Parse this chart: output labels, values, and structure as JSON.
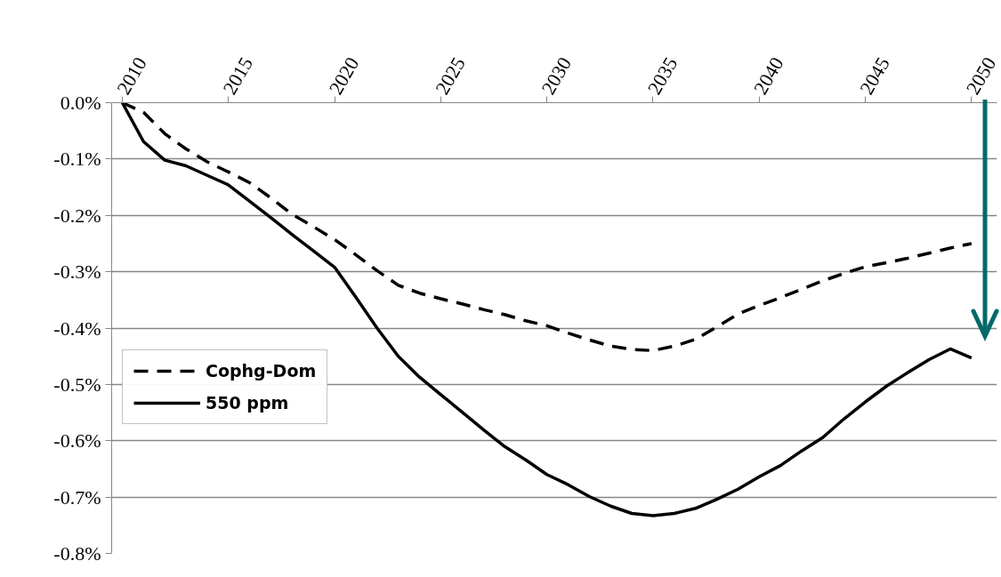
{
  "chart_data": {
    "type": "line",
    "x": [
      2010,
      2011,
      2012,
      2013,
      2014,
      2015,
      2016,
      2017,
      2018,
      2019,
      2020,
      2021,
      2022,
      2023,
      2024,
      2025,
      2026,
      2027,
      2028,
      2029,
      2030,
      2031,
      2032,
      2033,
      2034,
      2035,
      2036,
      2037,
      2038,
      2039,
      2040,
      2041,
      2042,
      2043,
      2044,
      2045,
      2046,
      2047,
      2048,
      2049,
      2050
    ],
    "series": [
      {
        "name": "Cophg-Dom",
        "color": "#000000",
        "line_style": "dashed",
        "values": [
          0,
          -0.017,
          -0.055,
          -0.082,
          -0.105,
          -0.123,
          -0.142,
          -0.169,
          -0.198,
          -0.22,
          -0.243,
          -0.27,
          -0.298,
          -0.324,
          -0.338,
          -0.348,
          -0.357,
          -0.367,
          -0.376,
          -0.387,
          -0.396,
          -0.409,
          -0.421,
          -0.432,
          -0.438,
          -0.44,
          -0.432,
          -0.42,
          -0.398,
          -0.375,
          -0.36,
          -0.346,
          -0.331,
          -0.316,
          -0.303,
          -0.291,
          -0.284,
          -0.276,
          -0.267,
          -0.258,
          -0.25
        ]
      },
      {
        "name": "550 ppm",
        "color": "#000000",
        "line_style": "solid",
        "values": [
          0,
          -0.069,
          -0.102,
          -0.112,
          -0.129,
          -0.146,
          -0.175,
          -0.204,
          -0.234,
          -0.263,
          -0.292,
          -0.345,
          -0.4,
          -0.45,
          -0.487,
          -0.518,
          -0.549,
          -0.58,
          -0.61,
          -0.634,
          -0.66,
          -0.678,
          -0.699,
          -0.716,
          -0.729,
          -0.733,
          -0.729,
          -0.72,
          -0.704,
          -0.686,
          -0.664,
          -0.644,
          -0.618,
          -0.594,
          -0.561,
          -0.531,
          -0.503,
          -0.479,
          -0.456,
          -0.437,
          -0.453
        ]
      }
    ],
    "xlim": [
      2009.5,
      2051.2
    ],
    "xticks": [
      2010,
      2015,
      2020,
      2025,
      2030,
      2035,
      2040,
      2045,
      2050
    ],
    "ylim": [
      -0.8,
      0
    ],
    "yticks": [
      {
        "value": 0,
        "label": "0.0%"
      },
      {
        "value": -0.1,
        "label": "-0.1%"
      },
      {
        "value": -0.2,
        "label": "-0.2%"
      },
      {
        "value": -0.3,
        "label": "-0.3%"
      },
      {
        "value": -0.4,
        "label": "-0.4%"
      },
      {
        "value": -0.5,
        "label": "-0.5%"
      },
      {
        "value": -0.6,
        "label": "-0.6%"
      },
      {
        "value": -0.7,
        "label": "-0.7%"
      },
      {
        "value": -0.8,
        "label": "-0.8%"
      }
    ],
    "grid": "y",
    "legend": "left",
    "marker": "none"
  }
}
